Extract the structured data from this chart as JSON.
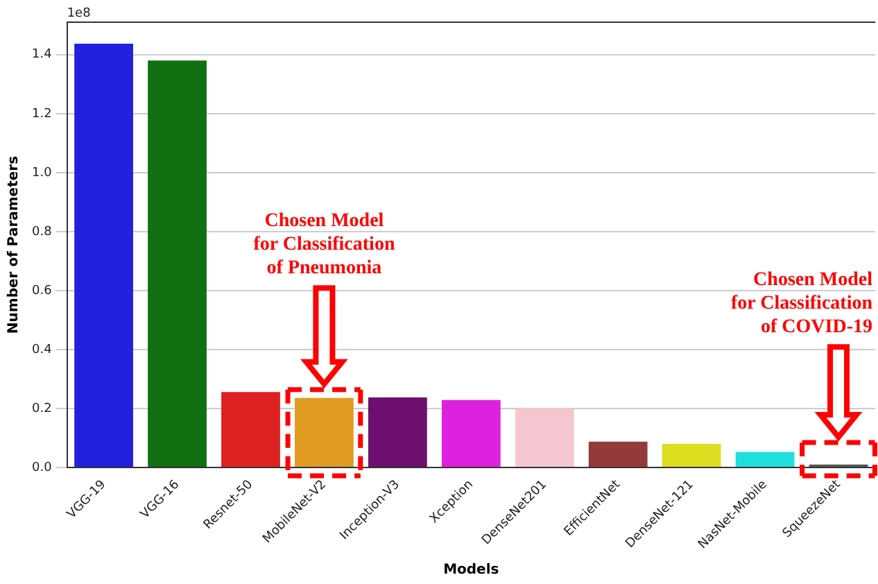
{
  "chart_data": {
    "type": "bar",
    "xlabel": "Models",
    "ylabel": "Number of Parameters",
    "categories": [
      "VGG-19",
      "VGG-16",
      "Resnet-50",
      "MobileNet-V2",
      "Inception-V3",
      "Xception",
      "DenseNet201",
      "EfficientNet",
      "DenseNet-121",
      "NasNet-Mobile",
      "SqueezeNet"
    ],
    "values": [
      1.437,
      1.38,
      0.256,
      0.236,
      0.238,
      0.229,
      0.2,
      0.088,
      0.08,
      0.053,
      0.01
    ],
    "colors": [
      "#2121de",
      "#117011",
      "#de2121",
      "#e09c22",
      "#6e0e6e",
      "#de21de",
      "#f5c6cf",
      "#933a3a",
      "#dede21",
      "#21dede",
      "#555555"
    ],
    "ylim": [
      0,
      1.51
    ],
    "yticks": [
      {
        "value": 0,
        "label": "0.0"
      },
      0.2,
      0.4,
      0.6,
      0.8,
      {
        "value": 1,
        "label": "1.0"
      },
      1.2,
      1.4
    ],
    "grid": "y",
    "annotations": [
      "1e8",
      "Chosen Model\nfor Classification\nof Pneumonia",
      "Chosen Model\nfor Classification\nof COVID-19"
    ]
  }
}
